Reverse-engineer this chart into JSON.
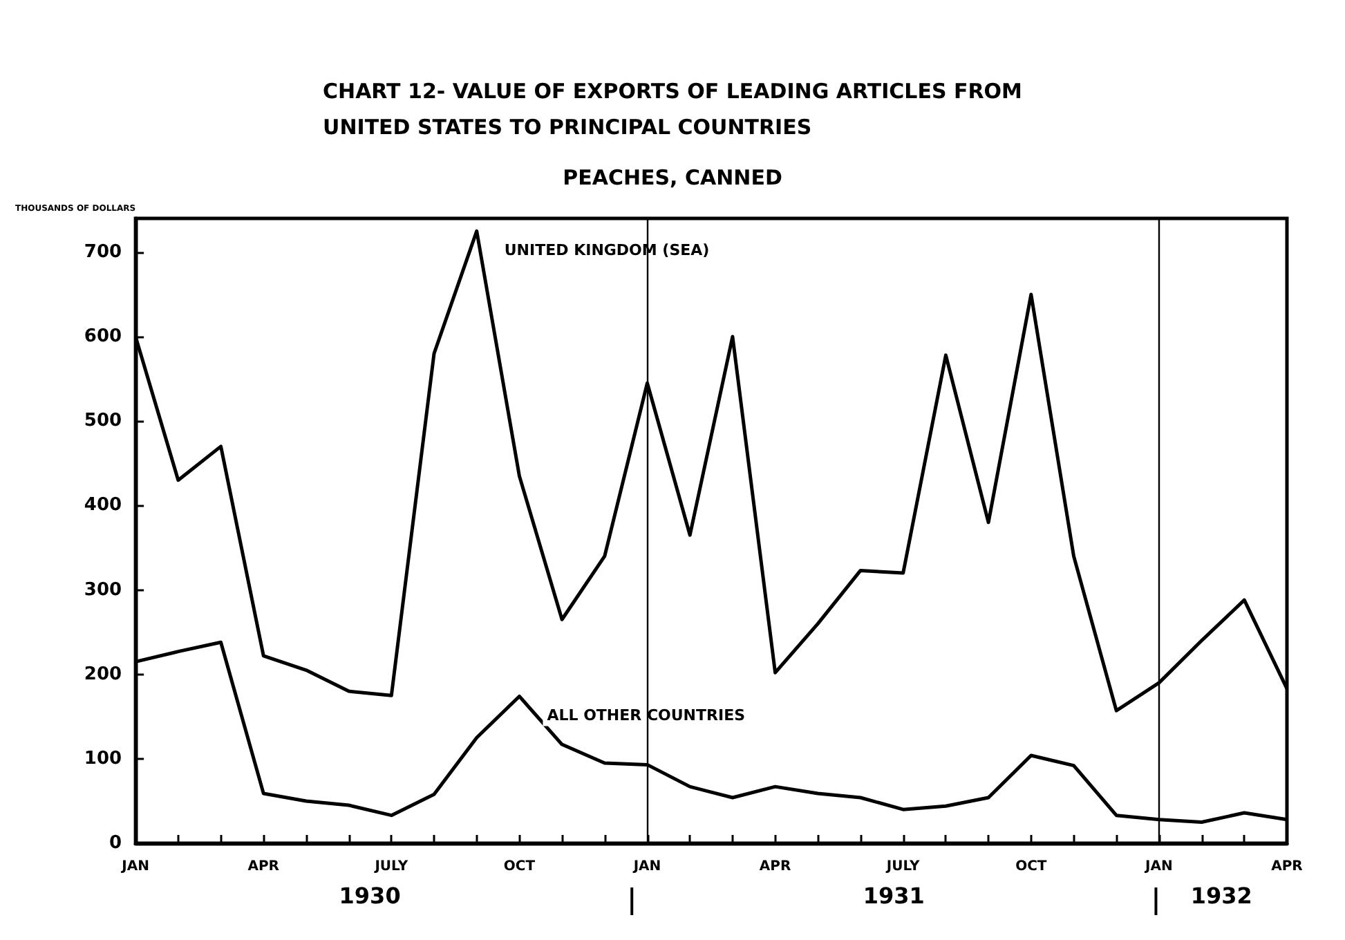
{
  "chart_data": {
    "type": "line",
    "title": "CHART 12- VALUE OF EXPORTS OF LEADING ARTICLES FROM\nUNITED STATES TO PRINCIPAL COUNTRIES",
    "subtitle": "PEACHES, CANNED",
    "ylabel": "THOUSANDS OF DOLLARS",
    "x": [
      "1930-01",
      "1930-02",
      "1930-03",
      "1930-04",
      "1930-05",
      "1930-06",
      "1930-07",
      "1930-08",
      "1930-09",
      "1930-10",
      "1930-11",
      "1930-12",
      "1931-01",
      "1931-02",
      "1931-03",
      "1931-04",
      "1931-05",
      "1931-06",
      "1931-07",
      "1931-08",
      "1931-09",
      "1931-10",
      "1931-11",
      "1931-12",
      "1932-01",
      "1932-02",
      "1932-03",
      "1932-04"
    ],
    "xticks": [
      {
        "value": "1930-01",
        "label": "JAN"
      },
      {
        "value": "1930-04",
        "label": "APR"
      },
      {
        "value": "1930-07",
        "label": "JULY"
      },
      {
        "value": "1930-10",
        "label": "OCT"
      },
      {
        "value": "1931-01",
        "label": "JAN"
      },
      {
        "value": "1931-04",
        "label": "APR"
      },
      {
        "value": "1931-07",
        "label": "JULY"
      },
      {
        "value": "1931-10",
        "label": "OCT"
      },
      {
        "value": "1932-01",
        "label": "JAN"
      },
      {
        "value": "1932-04",
        "label": "APR"
      }
    ],
    "series": [
      {
        "name": "UNITED KINGDOM (SEA)",
        "color": "#000000",
        "values": [
          600,
          430,
          470,
          222,
          205,
          180,
          175,
          580,
          725,
          435,
          265,
          340,
          545,
          365,
          600,
          202,
          260,
          323,
          320,
          578,
          380,
          650,
          340,
          157,
          190,
          240,
          288,
          183
        ]
      },
      {
        "name": "ALL OTHER COUNTRIES",
        "color": "#000000",
        "values": [
          215,
          227,
          238,
          59,
          50,
          45,
          33,
          58,
          125,
          174,
          117,
          95,
          93,
          67,
          54,
          67,
          59,
          54,
          40,
          44,
          54,
          104,
          92,
          33,
          28,
          25,
          36,
          28
        ]
      }
    ],
    "xlim": [
      "1930-01",
      "1932-04"
    ],
    "ylim": [
      0,
      740
    ],
    "yticks": [
      0,
      100,
      200,
      300,
      400,
      500,
      600,
      700
    ],
    "ref_lines": [
      {
        "axis": "x",
        "value": "1931-01"
      },
      {
        "axis": "x",
        "value": "1932-01"
      }
    ],
    "annotations": [
      "1930",
      "1931",
      "1932"
    ],
    "grid": false,
    "legend": false,
    "marker": "none",
    "line_style": "solid"
  }
}
